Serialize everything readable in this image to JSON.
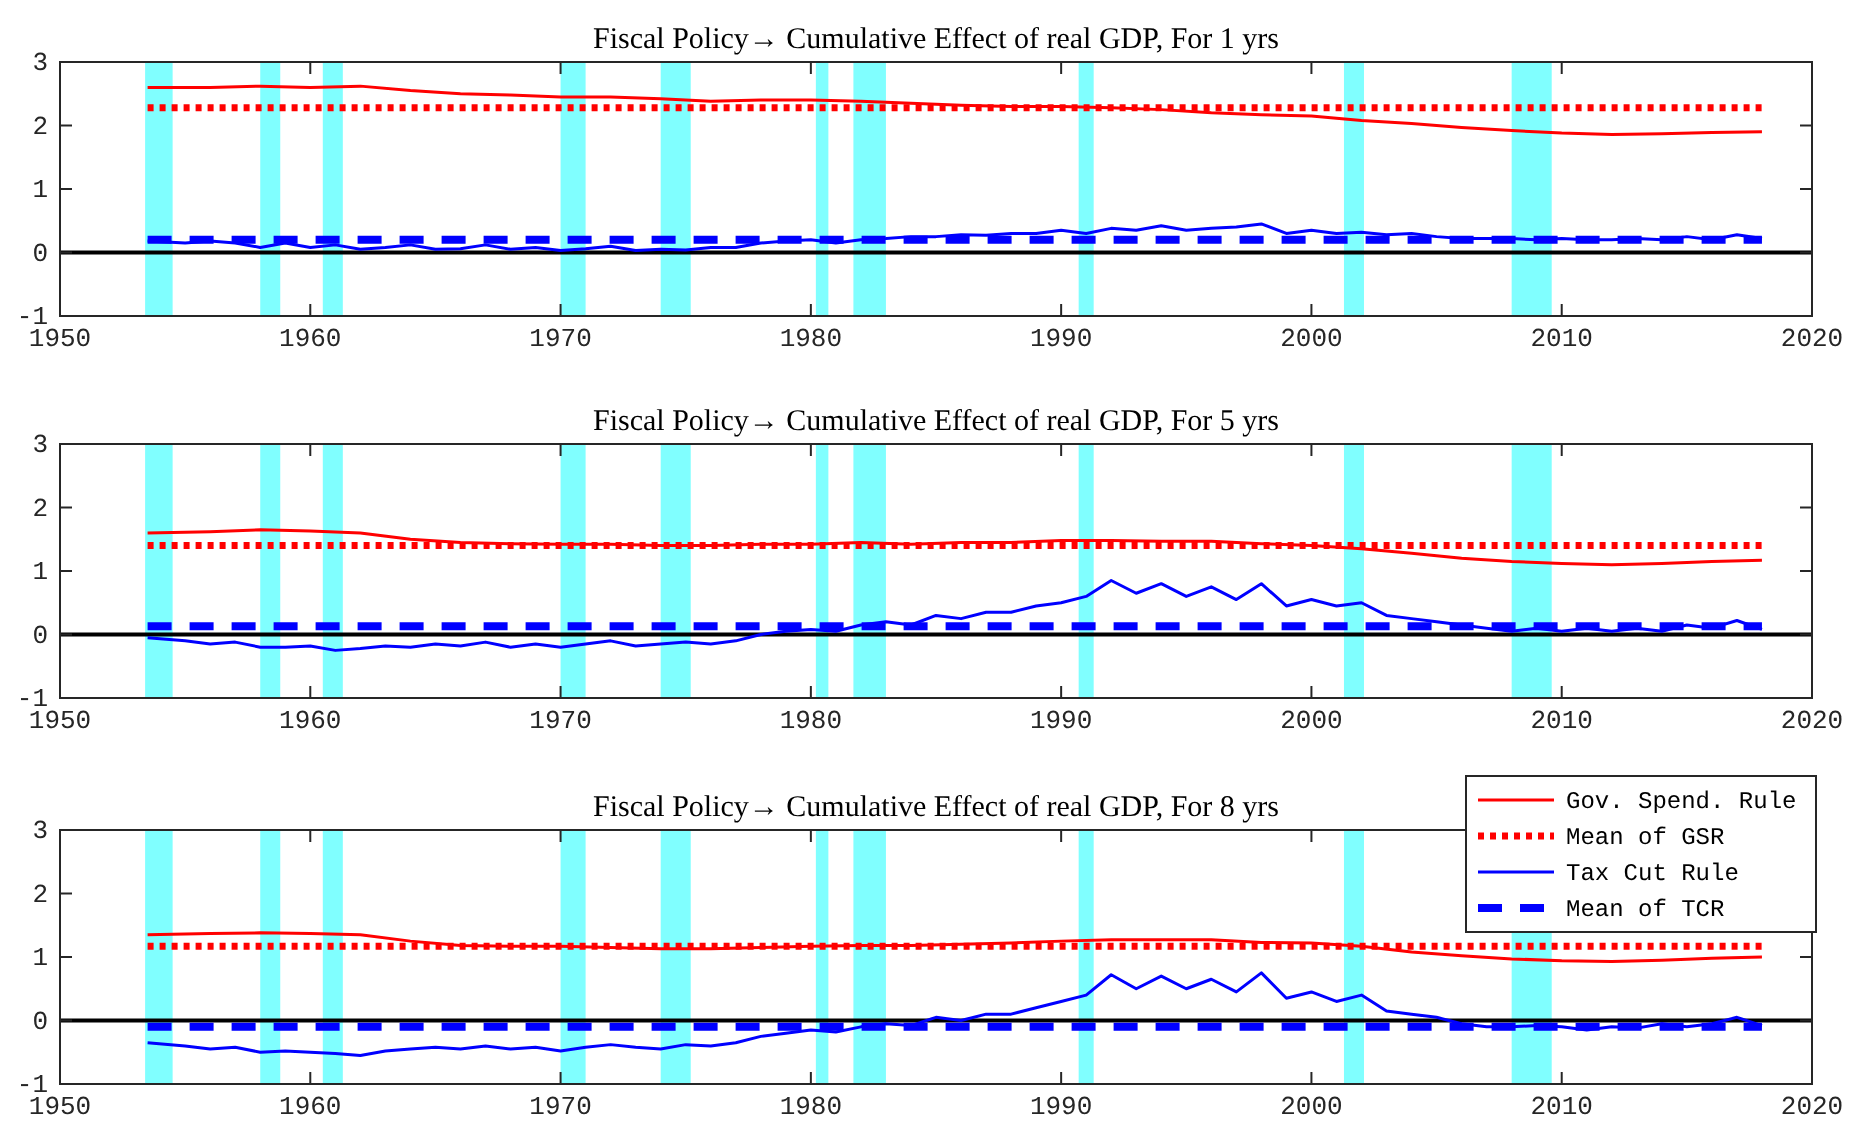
{
  "chart_data": [
    {
      "type": "line",
      "title": "Fiscal Policy→  Cumulative Effect of real GDP, For 1 yrs",
      "xlim": [
        1950,
        2020
      ],
      "xticks": [
        1950,
        1960,
        1970,
        1980,
        1990,
        2000,
        2010,
        2020
      ],
      "ylim": [
        -1,
        3
      ],
      "yticks": [
        -1,
        0,
        1,
        2,
        3
      ],
      "grid": false,
      "marker": "none",
      "bands": [
        {
          "axis": "x",
          "from": 1953.4,
          "to": 1954.5,
          "color": "#80ffff"
        },
        {
          "axis": "x",
          "from": 1958.0,
          "to": 1958.8,
          "color": "#80ffff"
        },
        {
          "axis": "x",
          "from": 1960.5,
          "to": 1961.3,
          "color": "#80ffff"
        },
        {
          "axis": "x",
          "from": 1970.0,
          "to": 1971.0,
          "color": "#80ffff"
        },
        {
          "axis": "x",
          "from": 1974.0,
          "to": 1975.2,
          "color": "#80ffff"
        },
        {
          "axis": "x",
          "from": 1980.2,
          "to": 1980.7,
          "color": "#80ffff"
        },
        {
          "axis": "x",
          "from": 1981.7,
          "to": 1983.0,
          "color": "#80ffff"
        },
        {
          "axis": "x",
          "from": 1990.7,
          "to": 1991.3,
          "color": "#80ffff"
        },
        {
          "axis": "x",
          "from": 2001.3,
          "to": 2002.1,
          "color": "#80ffff"
        },
        {
          "axis": "x",
          "from": 2008.0,
          "to": 2009.6,
          "color": "#80ffff"
        }
      ],
      "ref_lines": [
        {
          "axis": "y",
          "value": 0,
          "color": "#000000"
        }
      ],
      "series": [
        {
          "color": "#ff0000",
          "line_style": "solid",
          "x": [
            1953.5,
            1956,
            1958,
            1960,
            1962,
            1964,
            1966,
            1968,
            1970,
            1972,
            1974,
            1976,
            1978,
            1980,
            1982,
            1984,
            1986,
            1988,
            1990,
            1992,
            1994,
            1996,
            1998,
            2000,
            2002,
            2004,
            2006,
            2008,
            2010,
            2012,
            2014,
            2016,
            2018
          ],
          "values": [
            2.6,
            2.6,
            2.62,
            2.6,
            2.62,
            2.55,
            2.5,
            2.48,
            2.45,
            2.45,
            2.42,
            2.38,
            2.4,
            2.4,
            2.38,
            2.35,
            2.32,
            2.3,
            2.3,
            2.28,
            2.25,
            2.2,
            2.17,
            2.15,
            2.08,
            2.03,
            1.97,
            1.92,
            1.88,
            1.86,
            1.87,
            1.89,
            1.9
          ]
        },
        {
          "color": "#ff0000",
          "line_style": "dotted",
          "x": [
            1953.5,
            2018
          ],
          "values": [
            2.28,
            2.28
          ]
        },
        {
          "color": "#0000ff",
          "line_style": "solid",
          "x": [
            1953.5,
            1955,
            1956,
            1957,
            1958,
            1959,
            1960,
            1961,
            1962,
            1963,
            1964,
            1965,
            1966,
            1967,
            1968,
            1969,
            1970,
            1971,
            1972,
            1973,
            1974,
            1975,
            1976,
            1977,
            1978,
            1979,
            1980,
            1981,
            1982,
            1983,
            1984,
            1985,
            1986,
            1987,
            1988,
            1989,
            1990,
            1991,
            1992,
            1993,
            1994,
            1995,
            1996,
            1997,
            1998,
            1999,
            2000,
            2001,
            2002,
            2003,
            2004,
            2005,
            2006,
            2007,
            2008,
            2009,
            2010,
            2011,
            2012,
            2013,
            2014,
            2015,
            2016,
            2017,
            2018
          ],
          "values": [
            0.18,
            0.15,
            0.18,
            0.15,
            0.08,
            0.15,
            0.08,
            0.12,
            0.05,
            0.08,
            0.12,
            0.05,
            0.06,
            0.12,
            0.05,
            0.08,
            0.03,
            0.06,
            0.1,
            0.03,
            0.05,
            0.04,
            0.08,
            0.08,
            0.15,
            0.18,
            0.2,
            0.15,
            0.2,
            0.22,
            0.25,
            0.25,
            0.28,
            0.27,
            0.3,
            0.3,
            0.35,
            0.3,
            0.38,
            0.35,
            0.42,
            0.35,
            0.38,
            0.4,
            0.45,
            0.3,
            0.35,
            0.3,
            0.32,
            0.28,
            0.3,
            0.25,
            0.22,
            0.22,
            0.22,
            0.2,
            0.22,
            0.2,
            0.2,
            0.22,
            0.2,
            0.25,
            0.2,
            0.28,
            0.22
          ]
        },
        {
          "color": "#0000ff",
          "line_style": "dashed",
          "x": [
            1953.5,
            2018
          ],
          "values": [
            0.2,
            0.2
          ]
        }
      ]
    },
    {
      "type": "line",
      "title": "Fiscal Policy→  Cumulative Effect of real GDP, For 5 yrs",
      "xlim": [
        1950,
        2020
      ],
      "xticks": [
        1950,
        1960,
        1970,
        1980,
        1990,
        2000,
        2010,
        2020
      ],
      "ylim": [
        -1,
        3
      ],
      "yticks": [
        -1,
        0,
        1,
        2,
        3
      ],
      "grid": false,
      "marker": "none",
      "bands": [
        {
          "axis": "x",
          "from": 1953.4,
          "to": 1954.5,
          "color": "#80ffff"
        },
        {
          "axis": "x",
          "from": 1958.0,
          "to": 1958.8,
          "color": "#80ffff"
        },
        {
          "axis": "x",
          "from": 1960.5,
          "to": 1961.3,
          "color": "#80ffff"
        },
        {
          "axis": "x",
          "from": 1970.0,
          "to": 1971.0,
          "color": "#80ffff"
        },
        {
          "axis": "x",
          "from": 1974.0,
          "to": 1975.2,
          "color": "#80ffff"
        },
        {
          "axis": "x",
          "from": 1980.2,
          "to": 1980.7,
          "color": "#80ffff"
        },
        {
          "axis": "x",
          "from": 1981.7,
          "to": 1983.0,
          "color": "#80ffff"
        },
        {
          "axis": "x",
          "from": 1990.7,
          "to": 1991.3,
          "color": "#80ffff"
        },
        {
          "axis": "x",
          "from": 2001.3,
          "to": 2002.1,
          "color": "#80ffff"
        },
        {
          "axis": "x",
          "from": 2008.0,
          "to": 2009.6,
          "color": "#80ffff"
        }
      ],
      "ref_lines": [
        {
          "axis": "y",
          "value": 0,
          "color": "#000000"
        }
      ],
      "series": [
        {
          "color": "#ff0000",
          "line_style": "solid",
          "x": [
            1953.5,
            1956,
            1958,
            1960,
            1962,
            1964,
            1966,
            1968,
            1970,
            1972,
            1974,
            1976,
            1978,
            1980,
            1982,
            1984,
            1986,
            1988,
            1990,
            1992,
            1994,
            1996,
            1998,
            2000,
            2002,
            2004,
            2006,
            2008,
            2010,
            2012,
            2014,
            2016,
            2018
          ],
          "values": [
            1.6,
            1.62,
            1.65,
            1.63,
            1.6,
            1.5,
            1.45,
            1.43,
            1.42,
            1.42,
            1.4,
            1.4,
            1.42,
            1.42,
            1.45,
            1.42,
            1.45,
            1.45,
            1.48,
            1.48,
            1.47,
            1.47,
            1.43,
            1.4,
            1.35,
            1.28,
            1.2,
            1.15,
            1.12,
            1.1,
            1.12,
            1.15,
            1.17
          ]
        },
        {
          "color": "#ff0000",
          "line_style": "dotted",
          "x": [
            1953.5,
            2018
          ],
          "values": [
            1.4,
            1.4
          ]
        },
        {
          "color": "#0000ff",
          "line_style": "solid",
          "x": [
            1953.5,
            1955,
            1956,
            1957,
            1958,
            1959,
            1960,
            1961,
            1962,
            1963,
            1964,
            1965,
            1966,
            1967,
            1968,
            1969,
            1970,
            1971,
            1972,
            1973,
            1974,
            1975,
            1976,
            1977,
            1978,
            1979,
            1980,
            1981,
            1982,
            1983,
            1984,
            1985,
            1986,
            1987,
            1988,
            1989,
            1990,
            1991,
            1992,
            1993,
            1994,
            1995,
            1996,
            1997,
            1998,
            1999,
            2000,
            2001,
            2002,
            2003,
            2004,
            2005,
            2006,
            2007,
            2008,
            2009,
            2010,
            2011,
            2012,
            2013,
            2014,
            2015,
            2016,
            2017,
            2018
          ],
          "values": [
            -0.05,
            -0.1,
            -0.15,
            -0.12,
            -0.2,
            -0.2,
            -0.18,
            -0.25,
            -0.22,
            -0.18,
            -0.2,
            -0.15,
            -0.18,
            -0.12,
            -0.2,
            -0.15,
            -0.2,
            -0.15,
            -0.1,
            -0.18,
            -0.15,
            -0.12,
            -0.15,
            -0.1,
            0.0,
            0.05,
            0.08,
            0.05,
            0.15,
            0.2,
            0.15,
            0.3,
            0.25,
            0.35,
            0.35,
            0.45,
            0.5,
            0.6,
            0.85,
            0.65,
            0.8,
            0.6,
            0.75,
            0.55,
            0.8,
            0.45,
            0.55,
            0.45,
            0.5,
            0.3,
            0.25,
            0.2,
            0.15,
            0.1,
            0.05,
            0.1,
            0.05,
            0.1,
            0.05,
            0.1,
            0.05,
            0.15,
            0.1,
            0.22,
            0.08
          ]
        },
        {
          "color": "#0000ff",
          "line_style": "dashed",
          "x": [
            1953.5,
            2018
          ],
          "values": [
            0.13,
            0.13
          ]
        }
      ]
    },
    {
      "type": "line",
      "title": "Fiscal Policy→  Cumulative Effect of real GDP, For 8 yrs",
      "xlim": [
        1950,
        2020
      ],
      "xticks": [
        1950,
        1960,
        1970,
        1980,
        1990,
        2000,
        2010,
        2020
      ],
      "ylim": [
        -1,
        3
      ],
      "yticks": [
        -1,
        0,
        1,
        2,
        3
      ],
      "grid": false,
      "marker": "none",
      "legend": "top right",
      "bands": [
        {
          "axis": "x",
          "from": 1953.4,
          "to": 1954.5,
          "color": "#80ffff"
        },
        {
          "axis": "x",
          "from": 1958.0,
          "to": 1958.8,
          "color": "#80ffff"
        },
        {
          "axis": "x",
          "from": 1960.5,
          "to": 1961.3,
          "color": "#80ffff"
        },
        {
          "axis": "x",
          "from": 1970.0,
          "to": 1971.0,
          "color": "#80ffff"
        },
        {
          "axis": "x",
          "from": 1974.0,
          "to": 1975.2,
          "color": "#80ffff"
        },
        {
          "axis": "x",
          "from": 1980.2,
          "to": 1980.7,
          "color": "#80ffff"
        },
        {
          "axis": "x",
          "from": 1981.7,
          "to": 1983.0,
          "color": "#80ffff"
        },
        {
          "axis": "x",
          "from": 1990.7,
          "to": 1991.3,
          "color": "#80ffff"
        },
        {
          "axis": "x",
          "from": 2001.3,
          "to": 2002.1,
          "color": "#80ffff"
        },
        {
          "axis": "x",
          "from": 2008.0,
          "to": 2009.6,
          "color": "#80ffff"
        }
      ],
      "ref_lines": [
        {
          "axis": "y",
          "value": 0,
          "color": "#000000"
        }
      ],
      "series": [
        {
          "name": "Gov. Spend. Rule",
          "color": "#ff0000",
          "line_style": "solid",
          "x": [
            1953.5,
            1956,
            1958,
            1960,
            1962,
            1964,
            1966,
            1968,
            1970,
            1972,
            1974,
            1976,
            1978,
            1980,
            1982,
            1984,
            1986,
            1988,
            1990,
            1992,
            1994,
            1996,
            1998,
            2000,
            2002,
            2004,
            2006,
            2008,
            2010,
            2012,
            2014,
            2016,
            2018
          ],
          "values": [
            1.35,
            1.37,
            1.38,
            1.37,
            1.35,
            1.25,
            1.18,
            1.17,
            1.17,
            1.15,
            1.13,
            1.13,
            1.15,
            1.17,
            1.18,
            1.18,
            1.2,
            1.22,
            1.25,
            1.27,
            1.27,
            1.27,
            1.23,
            1.22,
            1.17,
            1.08,
            1.02,
            0.97,
            0.94,
            0.93,
            0.95,
            0.98,
            1.0
          ]
        },
        {
          "name": "Mean of GSR",
          "color": "#ff0000",
          "line_style": "dotted",
          "x": [
            1953.5,
            2018
          ],
          "values": [
            1.17,
            1.17
          ]
        },
        {
          "name": "Tax Cut Rule",
          "color": "#0000ff",
          "line_style": "solid",
          "x": [
            1953.5,
            1955,
            1956,
            1957,
            1958,
            1959,
            1960,
            1961,
            1962,
            1963,
            1964,
            1965,
            1966,
            1967,
            1968,
            1969,
            1970,
            1971,
            1972,
            1973,
            1974,
            1975,
            1976,
            1977,
            1978,
            1979,
            1980,
            1981,
            1982,
            1983,
            1984,
            1985,
            1986,
            1987,
            1988,
            1989,
            1990,
            1991,
            1992,
            1993,
            1994,
            1995,
            1996,
            1997,
            1998,
            1999,
            2000,
            2001,
            2002,
            2003,
            2004,
            2005,
            2006,
            2007,
            2008,
            2009,
            2010,
            2011,
            2012,
            2013,
            2014,
            2015,
            2016,
            2017,
            2018
          ],
          "values": [
            -0.35,
            -0.4,
            -0.45,
            -0.42,
            -0.5,
            -0.48,
            -0.5,
            -0.52,
            -0.55,
            -0.48,
            -0.45,
            -0.42,
            -0.45,
            -0.4,
            -0.45,
            -0.42,
            -0.48,
            -0.42,
            -0.38,
            -0.42,
            -0.45,
            -0.38,
            -0.4,
            -0.35,
            -0.25,
            -0.2,
            -0.15,
            -0.18,
            -0.1,
            -0.05,
            -0.08,
            0.05,
            0.0,
            0.1,
            0.1,
            0.2,
            0.3,
            0.4,
            0.72,
            0.5,
            0.7,
            0.5,
            0.65,
            0.45,
            0.75,
            0.35,
            0.45,
            0.3,
            0.4,
            0.15,
            0.1,
            0.05,
            -0.05,
            -0.1,
            -0.1,
            -0.08,
            -0.1,
            -0.15,
            -0.1,
            -0.12,
            -0.05,
            -0.1,
            -0.05,
            0.05,
            -0.08
          ]
        },
        {
          "name": "Mean of TCR",
          "color": "#0000ff",
          "line_style": "dashed",
          "x": [
            1953.5,
            2018
          ],
          "values": [
            -0.1,
            -0.1
          ]
        }
      ]
    }
  ]
}
